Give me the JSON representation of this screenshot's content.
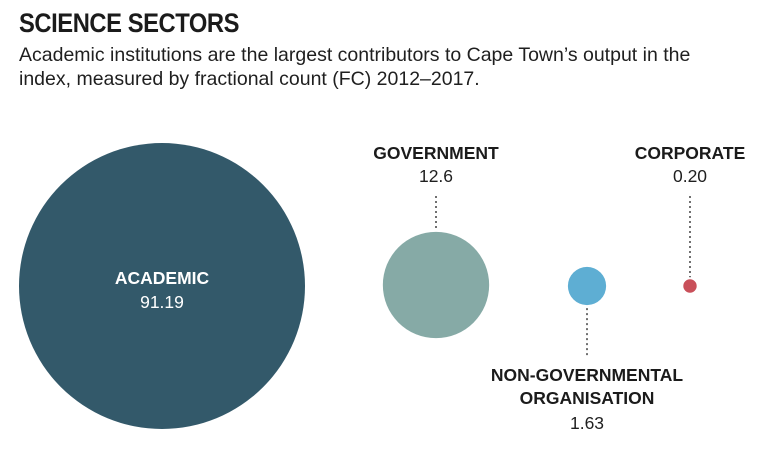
{
  "header": {
    "title": "SCIENCE SECTORS",
    "subtitle": "Academic institutions are the largest contributors to Cape Town’s output in the index, measured by fractional count (FC) 2012–2017."
  },
  "chart_data": {
    "type": "bubble",
    "title": "SCIENCE SECTORS",
    "subtitle": "Academic institutions are the largest contributors to Cape Town’s output in the index, measured by fractional count (FC) 2012–2017.",
    "sectors": [
      {
        "key": "academic",
        "lines": [
          "ACADEMIC"
        ],
        "value": 91.19,
        "value_label": "91.19",
        "color": "#33596a",
        "label_position": "inside"
      },
      {
        "key": "government",
        "lines": [
          "GOVERNMENT"
        ],
        "value": 12.6,
        "value_label": "12.6",
        "color": "#86aaa6",
        "label_position": "above"
      },
      {
        "key": "non-governmental-organisation",
        "lines": [
          "NON-GOVERNMENTAL",
          "ORGANISATION"
        ],
        "value": 1.63,
        "value_label": "1.63",
        "color": "#5eaed3",
        "label_position": "below"
      },
      {
        "key": "corporate",
        "lines": [
          "CORPORATE"
        ],
        "value": 0.2,
        "value_label": "0.20",
        "color": "#c9505a",
        "label_position": "above"
      }
    ]
  }
}
